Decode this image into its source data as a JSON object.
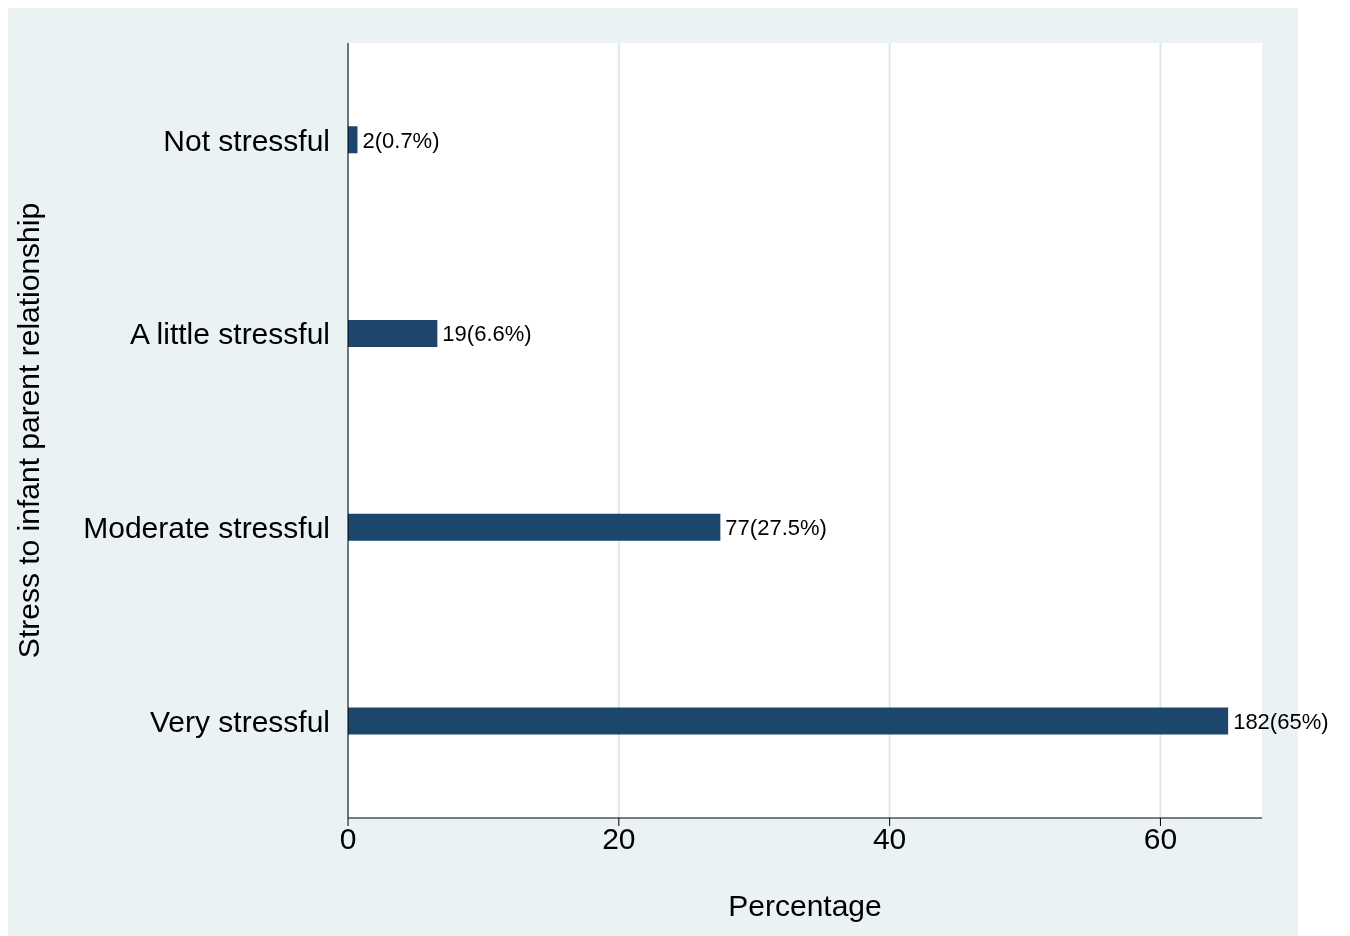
{
  "chart_data": {
    "type": "bar",
    "orientation": "horizontal",
    "categories": [
      "Not stressful",
      "A little stressful",
      "Moderate stressful",
      "Very stressful"
    ],
    "values": [
      0.7,
      6.6,
      27.5,
      65
    ],
    "value_labels": [
      "2(0.7%)",
      "19(6.6%)",
      "77(27.5%)",
      "182(65%)"
    ],
    "color": "#1c466c",
    "xlabel": "Percentage",
    "ylabel": "Stress to infant parent relationship",
    "xlim": [
      0,
      67.5
    ],
    "xticks": [
      0,
      20,
      40,
      60
    ],
    "grid": "x"
  }
}
